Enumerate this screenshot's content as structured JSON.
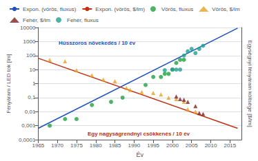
{
  "chart_data": {
    "type": "scatter",
    "xlabel": "Év",
    "ylabel": "Fényáram / LED tok [lm]",
    "y2label": "Egységnyi fényáram költsége [$/lm]",
    "log": "y",
    "xlim": [
      1965,
      2018
    ],
    "xticks": [
      1965,
      1970,
      1975,
      1980,
      1985,
      1990,
      1995,
      2000,
      2005,
      2010,
      2015
    ],
    "ylim": [
      0.0001,
      10000
    ],
    "yticks": [
      {
        "value": 0.0001,
        "label": "0,0001"
      },
      {
        "value": 0.001,
        "label": "0,001"
      },
      {
        "value": 0.01,
        "label": "0,01"
      },
      {
        "value": 0.1,
        "label": "0,1"
      },
      1,
      10,
      100,
      1000,
      10000
    ],
    "y2lim": [
      0.0001,
      10000
    ],
    "grid": true,
    "legend": "upper left",
    "annotations": [
      {
        "text": "Hússzoros növekedés / 10 év",
        "color": "#2050c0"
      },
      {
        "text": "Egy nagyságrendnyi csökkenés / 10 év",
        "color": "#c03010"
      }
    ],
    "series": [
      {
        "name": "Expon. (vörös, fluxus)",
        "type": "line",
        "color": "#2050c0",
        "x": [
          1965,
          2017
        ],
        "values": [
          0.00065,
          9000
        ]
      },
      {
        "name": "Expon. (vörös, $/lm)",
        "type": "line",
        "color": "#c03010",
        "x": [
          1965,
          2017
        ],
        "values": [
          65,
          0.00065
        ]
      },
      {
        "name": "Vörös, fluxus",
        "type": "scatter",
        "marker": "circle",
        "color": "#20a040",
        "x": [
          1968,
          1972,
          1975,
          1979,
          1984,
          1987,
          1993,
          1995,
          1997,
          1998,
          1999,
          2000,
          2001,
          2002,
          2003
        ],
        "values": [
          0.001,
          0.003,
          0.003,
          0.03,
          0.05,
          0.1,
          0.8,
          3.0,
          3.0,
          5.0,
          5.0,
          10.0,
          30.0,
          50.0,
          50.0
        ]
      },
      {
        "name": "Vörös, $/lm",
        "type": "scatter",
        "marker": "triangle",
        "color": "#e8a020",
        "x": [
          1968,
          1972,
          1975,
          1979,
          1982,
          1985,
          1988,
          1989,
          1992,
          1995,
          1997,
          1999,
          2001,
          2003,
          2004,
          2006
        ],
        "values": [
          50,
          40,
          9,
          4,
          2,
          1.5,
          0.5,
          0.35,
          0.25,
          0.22,
          0.17,
          0.1,
          0.08,
          0.05,
          0.015,
          0.01
        ]
      },
      {
        "name": "Fehér, $/lm",
        "type": "scatter",
        "marker": "triangle",
        "color": "#802020",
        "x": [
          2001,
          2002,
          2003,
          2004,
          2006,
          2007,
          2008
        ],
        "values": [
          0.12,
          0.08,
          0.07,
          0.05,
          0.025,
          0.008,
          0.007
        ]
      },
      {
        "name": "Fehér, fluxus",
        "type": "scatter",
        "marker": "circle",
        "color": "#20a090",
        "x": [
          1998,
          2000,
          2001,
          2002,
          2003,
          2004,
          2005,
          2006,
          2007,
          2008
        ],
        "values": [
          9.0,
          10.0,
          10.0,
          10.0,
          100.0,
          200.0,
          300.0,
          150.0,
          300.0,
          500.0
        ]
      }
    ]
  }
}
